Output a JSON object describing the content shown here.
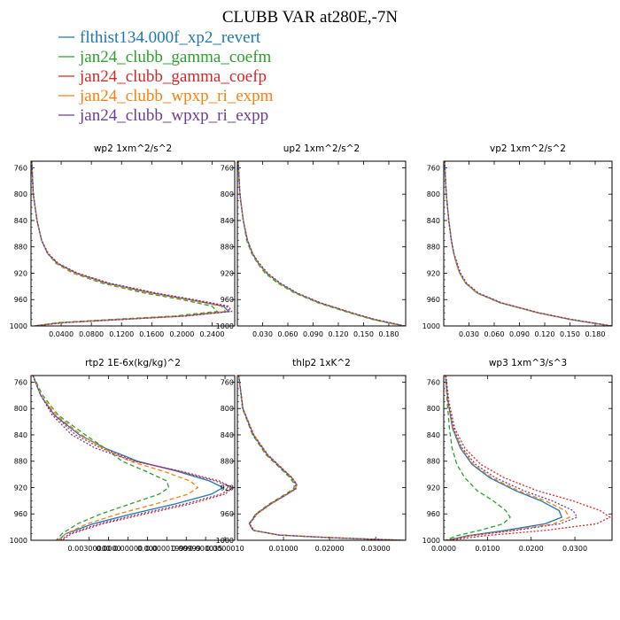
{
  "title": "CLUBB VAR at280E,-7N",
  "legend": [
    {
      "label": "flthist134.000f_xp2_revert",
      "color": "#1f77b4",
      "dash": "solid"
    },
    {
      "label": "jan24_clubb_gamma_coefm",
      "color": "#2ca02c",
      "dash": "dash"
    },
    {
      "label": "jan24_clubb_gamma_coefp",
      "color": "#d62728",
      "dash": "dot"
    },
    {
      "label": "jan24_clubb_wpxp_ri_expm",
      "color": "#ff7f0e",
      "dash": "dash"
    },
    {
      "label": "jan24_clubb_wpxp_ri_expp",
      "color": "#6a3d9a",
      "dash": "dot"
    }
  ],
  "chart_data": [
    {
      "type": "line",
      "title": "wp2   1xm^2/s^2",
      "xlim": [
        0,
        0.27
      ],
      "ylim": [
        1000,
        750
      ],
      "xticks": [
        0.04,
        0.08,
        0.12,
        0.16,
        0.2,
        0.24
      ],
      "xtick_labels": [
        "0.0400",
        "0.0800",
        "0.1200",
        "0.1600",
        "0.2000",
        "0.2400"
      ],
      "yticks": [
        760,
        800,
        840,
        880,
        920,
        960,
        1000
      ],
      "y": [
        750,
        800,
        840,
        870,
        890,
        905,
        920,
        935,
        950,
        960,
        970,
        978,
        985,
        990,
        995,
        1000
      ],
      "series": [
        {
          "x": [
            0.001,
            0.003,
            0.008,
            0.014,
            0.022,
            0.035,
            0.06,
            0.1,
            0.16,
            0.21,
            0.255,
            0.262,
            0.2,
            0.12,
            0.04,
            0.005
          ]
        },
        {
          "x": [
            0.001,
            0.003,
            0.008,
            0.014,
            0.022,
            0.033,
            0.056,
            0.094,
            0.15,
            0.2,
            0.24,
            0.247,
            0.19,
            0.11,
            0.035,
            0.005
          ]
        },
        {
          "x": [
            0.001,
            0.003,
            0.008,
            0.014,
            0.023,
            0.036,
            0.062,
            0.104,
            0.166,
            0.216,
            0.262,
            0.266,
            0.205,
            0.125,
            0.045,
            0.005
          ]
        },
        {
          "x": [
            0.001,
            0.003,
            0.008,
            0.014,
            0.022,
            0.034,
            0.058,
            0.098,
            0.157,
            0.207,
            0.252,
            0.258,
            0.198,
            0.118,
            0.04,
            0.005
          ]
        },
        {
          "x": [
            0.001,
            0.003,
            0.008,
            0.014,
            0.022,
            0.035,
            0.061,
            0.102,
            0.163,
            0.213,
            0.259,
            0.264,
            0.203,
            0.122,
            0.042,
            0.005
          ]
        }
      ]
    },
    {
      "type": "line",
      "title": "up2   1xm^2/s^2",
      "xlim": [
        0,
        0.2
      ],
      "ylim": [
        1000,
        750
      ],
      "xticks": [
        0.03,
        0.06,
        0.09,
        0.12,
        0.15,
        0.18
      ],
      "xtick_labels": [
        "0.030",
        "0.060",
        "0.090",
        "0.120",
        "0.150",
        "0.180"
      ],
      "yticks": [
        760,
        800,
        840,
        880,
        920,
        960,
        1000
      ],
      "y": [
        750,
        800,
        840,
        870,
        890,
        905,
        920,
        935,
        950,
        965,
        980,
        990,
        1000
      ],
      "series": [
        {
          "x": [
            0.001,
            0.003,
            0.007,
            0.012,
            0.018,
            0.025,
            0.035,
            0.05,
            0.07,
            0.098,
            0.135,
            0.162,
            0.198
          ]
        },
        {
          "x": [
            0.001,
            0.003,
            0.007,
            0.011,
            0.017,
            0.024,
            0.033,
            0.048,
            0.068,
            0.096,
            0.133,
            0.16,
            0.196
          ]
        },
        {
          "x": [
            0.001,
            0.003,
            0.007,
            0.012,
            0.018,
            0.026,
            0.036,
            0.051,
            0.071,
            0.099,
            0.136,
            0.163,
            0.199
          ]
        },
        {
          "x": [
            0.001,
            0.003,
            0.007,
            0.012,
            0.018,
            0.025,
            0.035,
            0.05,
            0.07,
            0.098,
            0.135,
            0.162,
            0.198
          ]
        },
        {
          "x": [
            0.001,
            0.003,
            0.007,
            0.012,
            0.018,
            0.026,
            0.036,
            0.051,
            0.071,
            0.099,
            0.136,
            0.163,
            0.199
          ]
        }
      ]
    },
    {
      "type": "line",
      "title": "vp2   1xm^2/s^2",
      "xlim": [
        0,
        0.2
      ],
      "ylim": [
        1000,
        750
      ],
      "xticks": [
        0.03,
        0.06,
        0.09,
        0.12,
        0.15,
        0.18
      ],
      "xtick_labels": [
        "0.030",
        "0.060",
        "0.090",
        "0.120",
        "0.150",
        "0.180"
      ],
      "yticks": [
        760,
        800,
        840,
        880,
        920,
        960,
        1000
      ],
      "y": [
        750,
        800,
        840,
        870,
        890,
        905,
        920,
        935,
        950,
        965,
        980,
        990,
        1000
      ],
      "series": [
        {
          "x": [
            0.001,
            0.003,
            0.006,
            0.009,
            0.012,
            0.015,
            0.019,
            0.026,
            0.04,
            0.068,
            0.112,
            0.15,
            0.199
          ]
        },
        {
          "x": [
            0.001,
            0.003,
            0.006,
            0.009,
            0.012,
            0.015,
            0.019,
            0.026,
            0.039,
            0.067,
            0.111,
            0.149,
            0.198
          ]
        },
        {
          "x": [
            0.001,
            0.003,
            0.006,
            0.009,
            0.012,
            0.016,
            0.02,
            0.027,
            0.041,
            0.069,
            0.113,
            0.151,
            0.2
          ]
        },
        {
          "x": [
            0.001,
            0.003,
            0.006,
            0.009,
            0.012,
            0.015,
            0.019,
            0.026,
            0.04,
            0.068,
            0.112,
            0.15,
            0.199
          ]
        },
        {
          "x": [
            0.001,
            0.003,
            0.006,
            0.009,
            0.012,
            0.016,
            0.02,
            0.027,
            0.041,
            0.069,
            0.113,
            0.151,
            0.2
          ]
        }
      ]
    },
    {
      "type": "line",
      "title": "rtp2   1E-6x(kg/kg)^2",
      "xlim": [
        0,
        1.05e-05
      ],
      "ylim": [
        1000,
        750
      ],
      "xticks": [
        3e-06,
        4e-06,
        5e-06,
        6e-06,
        7e-06,
        8e-06,
        9e-06,
        1e-05
      ],
      "xtick_labels": [
        "0.00300000",
        "0.0000",
        "0.00000",
        "0.000",
        "0.00001999",
        "0.00999",
        "0.000035",
        "0.0000010"
      ],
      "yticks": [
        760,
        800,
        840,
        880,
        920,
        960,
        1000
      ],
      "y": [
        750,
        780,
        810,
        840,
        860,
        880,
        895,
        910,
        920,
        930,
        945,
        960,
        975,
        990,
        1000
      ],
      "series": [
        {
          "x": [
            1e-07,
            5e-07,
            1.2e-06,
            2.5e-06,
            3.8e-06,
            5.5e-06,
            7.5e-06,
            9.2e-06,
            9.9e-06,
            9.3e-06,
            7.4e-06,
            5.2e-06,
            3.2e-06,
            1.8e-06,
            1.4e-06
          ]
        },
        {
          "x": [
            1e-07,
            6e-07,
            1.4e-06,
            2.8e-06,
            3.8e-06,
            4.7e-06,
            5.9e-06,
            7e-06,
            7.1e-06,
            6.6e-06,
            5.1e-06,
            3.6e-06,
            2.4e-06,
            1.6e-06,
            1.3e-06
          ]
        },
        {
          "x": [
            1e-07,
            5e-07,
            1.2e-06,
            2.3e-06,
            3.6e-06,
            5.4e-06,
            7.6e-06,
            9.5e-06,
            1.04e-05,
            1e-05,
            8.2e-06,
            5.9e-06,
            3.7e-06,
            2.1e-06,
            1.6e-06
          ]
        },
        {
          "x": [
            1e-07,
            5e-07,
            1.3e-06,
            2.6e-06,
            3.7e-06,
            5.1e-06,
            6.8e-06,
            8.2e-06,
            8.6e-06,
            8.1e-06,
            6.4e-06,
            4.5e-06,
            2.9e-06,
            1.8e-06,
            1.4e-06
          ]
        },
        {
          "x": [
            1e-07,
            5e-07,
            1.1e-06,
            2.1e-06,
            3.3e-06,
            5.3e-06,
            7.7e-06,
            9.7e-06,
            1.04e-05,
            9.8e-06,
            7.9e-06,
            5.6e-06,
            3.5e-06,
            2e-06,
            1.5e-06
          ]
        }
      ]
    },
    {
      "type": "line",
      "title": "thlp2   1xK^2",
      "xlim": [
        0,
        0.0365
      ],
      "ylim": [
        1000,
        750
      ],
      "xticks": [
        0.01,
        0.02,
        0.03
      ],
      "xtick_labels": [
        "0.01000",
        "0.02000",
        "0.03000"
      ],
      "yticks": [
        760,
        800,
        840,
        880,
        920,
        960,
        1000
      ],
      "y": [
        750,
        800,
        840,
        870,
        890,
        905,
        915,
        922,
        930,
        945,
        960,
        975,
        985,
        992,
        996,
        1000
      ],
      "series": [
        {
          "x": [
            0.0003,
            0.0012,
            0.0035,
            0.0065,
            0.0095,
            0.0118,
            0.0128,
            0.0126,
            0.0108,
            0.0072,
            0.0042,
            0.0026,
            0.0035,
            0.009,
            0.02,
            0.036
          ]
        },
        {
          "x": [
            0.0003,
            0.0011,
            0.0033,
            0.0062,
            0.0092,
            0.0114,
            0.0124,
            0.0122,
            0.0104,
            0.0069,
            0.004,
            0.0025,
            0.0034,
            0.0089,
            0.0198,
            0.0358
          ]
        },
        {
          "x": [
            0.0003,
            0.0012,
            0.0036,
            0.0066,
            0.0096,
            0.0119,
            0.0129,
            0.0127,
            0.0109,
            0.0073,
            0.0043,
            0.0027,
            0.0036,
            0.0091,
            0.0201,
            0.0362
          ]
        },
        {
          "x": [
            0.0003,
            0.0012,
            0.0035,
            0.0065,
            0.0095,
            0.0118,
            0.0128,
            0.0126,
            0.0108,
            0.0072,
            0.0042,
            0.0026,
            0.0035,
            0.009,
            0.02,
            0.036
          ]
        },
        {
          "x": [
            0.0003,
            0.0012,
            0.0034,
            0.0064,
            0.0094,
            0.0117,
            0.0127,
            0.0125,
            0.0107,
            0.0071,
            0.0041,
            0.0026,
            0.0035,
            0.009,
            0.0199,
            0.0359
          ]
        }
      ]
    },
    {
      "type": "line",
      "title": "wp3   1xm^3/s^3",
      "xlim": [
        0,
        0.0385
      ],
      "ylim": [
        1000,
        750
      ],
      "xticks": [
        0,
        0.01,
        0.02,
        0.03
      ],
      "xtick_labels": [
        "0.0000",
        "0.0100",
        "0.0200",
        "0.0300"
      ],
      "yticks": [
        760,
        800,
        840,
        880,
        920,
        960,
        1000
      ],
      "y": [
        750,
        790,
        830,
        860,
        885,
        905,
        925,
        940,
        955,
        965,
        975,
        985,
        993,
        1000
      ],
      "series": [
        {
          "x": [
            0.0004,
            0.001,
            0.002,
            0.0038,
            0.0065,
            0.0105,
            0.0165,
            0.0222,
            0.0264,
            0.027,
            0.0232,
            0.014,
            0.0055,
            0.0008
          ]
        },
        {
          "x": [
            0.0004,
            0.0008,
            0.0013,
            0.0019,
            0.003,
            0.0048,
            0.0077,
            0.0113,
            0.0142,
            0.0152,
            0.0136,
            0.0082,
            0.003,
            0.0004
          ]
        },
        {
          "x": [
            0.0005,
            0.0012,
            0.0025,
            0.0048,
            0.0085,
            0.0138,
            0.0215,
            0.0295,
            0.0358,
            0.038,
            0.035,
            0.0232,
            0.0095,
            0.0012
          ]
        },
        {
          "x": [
            0.0004,
            0.001,
            0.0021,
            0.004,
            0.0068,
            0.011,
            0.0172,
            0.0232,
            0.0278,
            0.0288,
            0.0252,
            0.0155,
            0.006,
            0.0009
          ]
        },
        {
          "x": [
            0.0004,
            0.001,
            0.0022,
            0.0042,
            0.0073,
            0.0118,
            0.0184,
            0.0248,
            0.0296,
            0.0305,
            0.0266,
            0.0163,
            0.0064,
            0.0009
          ]
        }
      ]
    }
  ]
}
